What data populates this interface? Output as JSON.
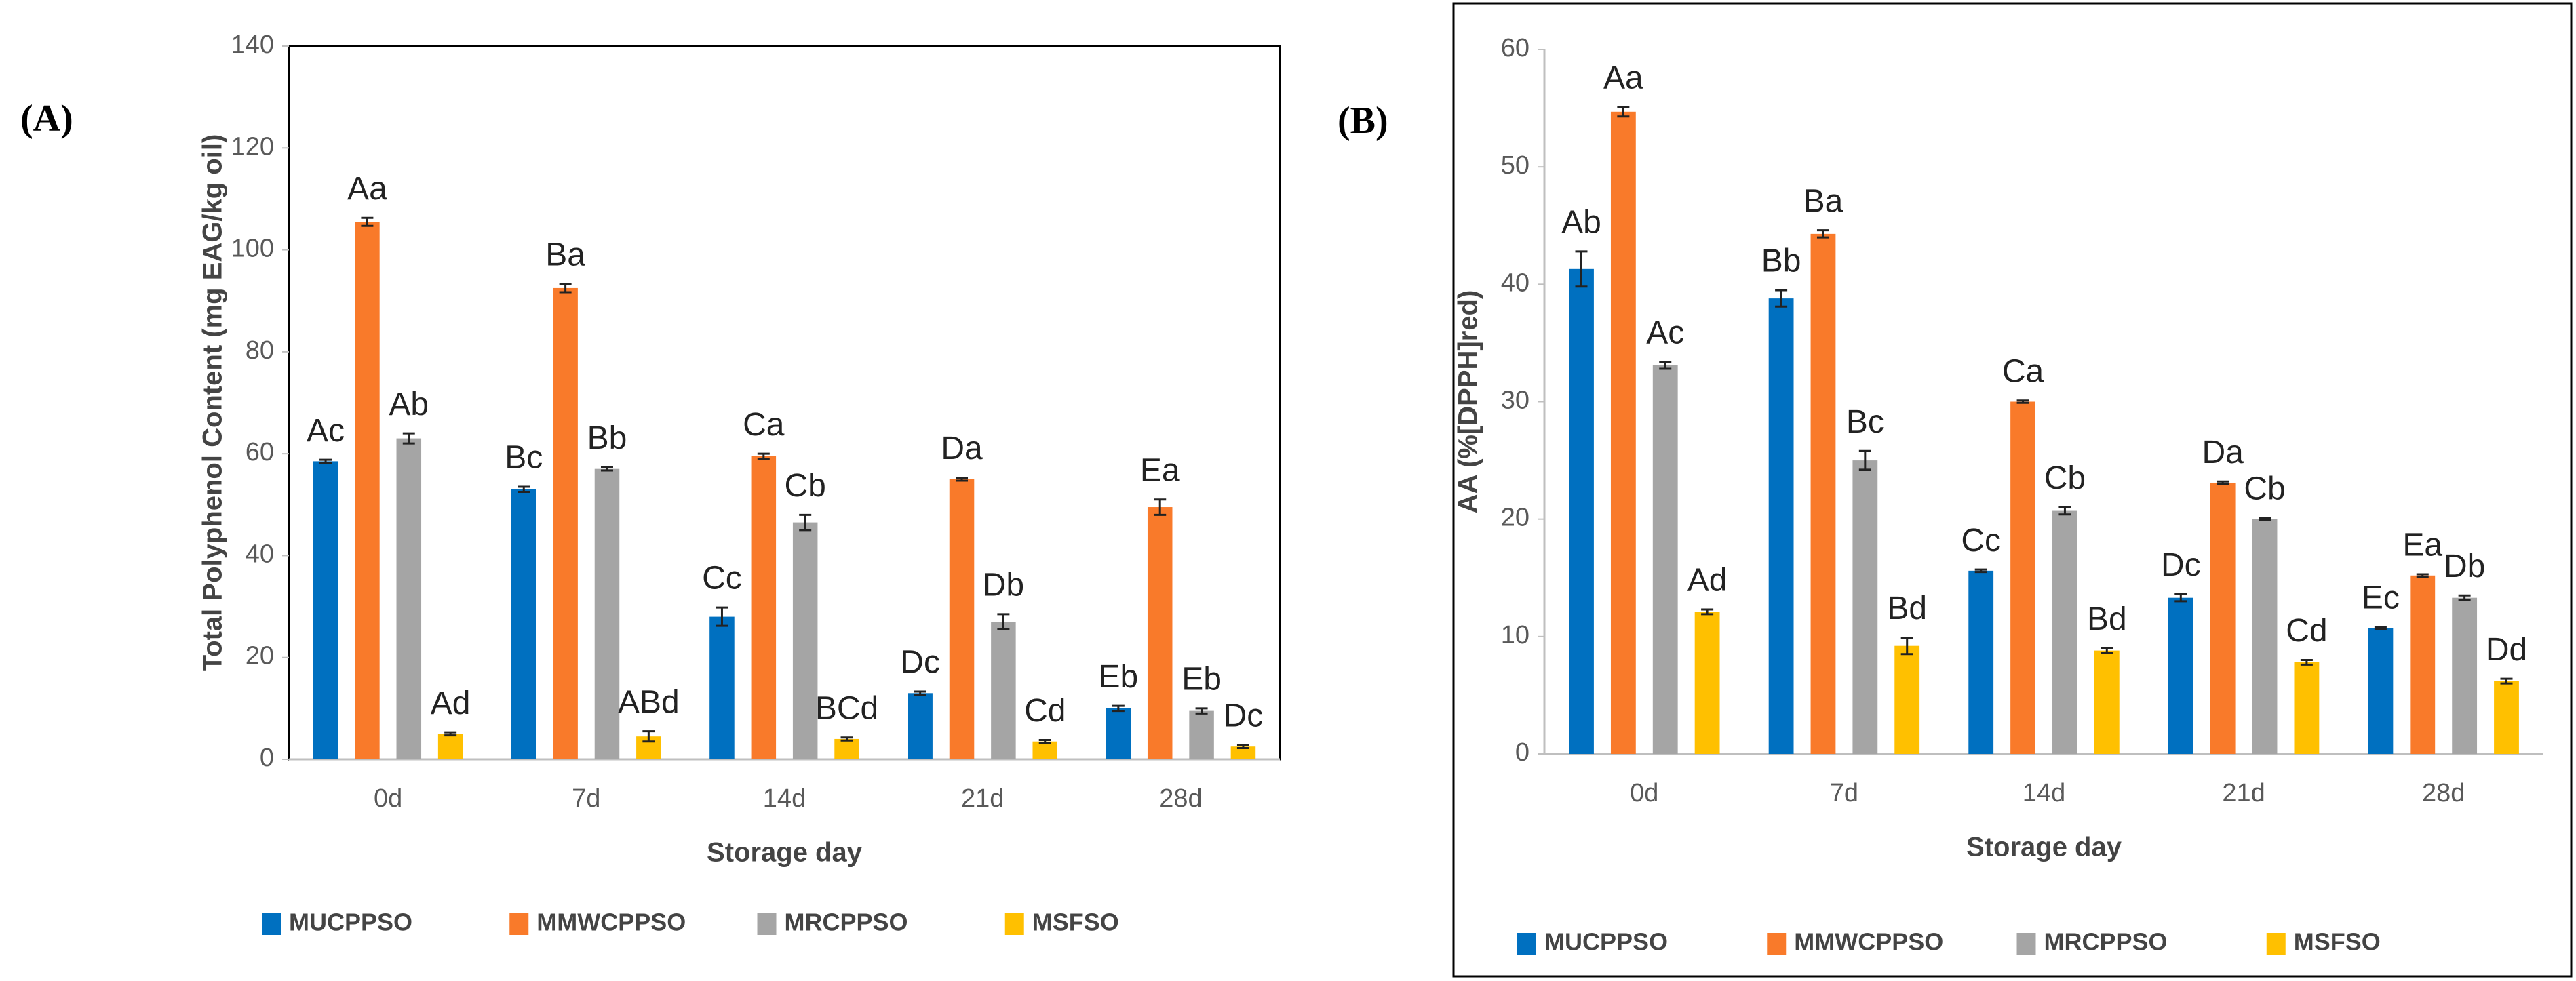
{
  "chart_data": [
    {
      "type": "bar",
      "panel": "(A)",
      "xlabel": "Storage day",
      "ylabel": "Total Polyphenol Content (mg EAG/kg oil)",
      "categories": [
        "0d",
        "7d",
        "14d",
        "21d",
        "28d"
      ],
      "ylim": [
        0,
        140
      ],
      "yticks": [
        0,
        20,
        40,
        60,
        80,
        100,
        120,
        140
      ],
      "grid": false,
      "series": [
        {
          "name": "MUCPPSO",
          "color": "#0070c0",
          "values": [
            58.5,
            53,
            28,
            13,
            10
          ],
          "errors": [
            0.3,
            0.5,
            1.8,
            0.3,
            0.5
          ],
          "letters": [
            "Ac",
            "Bc",
            "Cc",
            "Dc",
            "Eb"
          ]
        },
        {
          "name": "MMWCPPSO",
          "color": "#f97a2a",
          "values": [
            105.5,
            92.5,
            59.5,
            55,
            49.5
          ],
          "errors": [
            0.8,
            0.8,
            0.5,
            0.3,
            1.5
          ],
          "letters": [
            "Aa",
            "Ba",
            "Ca",
            "Da",
            "Ea"
          ]
        },
        {
          "name": "MRCPPSO",
          "color": "#a5a5a5",
          "values": [
            63,
            57,
            46.5,
            27,
            9.5
          ],
          "errors": [
            1,
            0.3,
            1.5,
            1.5,
            0.5
          ],
          "letters": [
            "Ab",
            "Bb",
            "Cb",
            "Db",
            "Eb"
          ]
        },
        {
          "name": "MSFSO",
          "color": "#ffc000",
          "values": [
            5,
            4.5,
            4,
            3.5,
            2.5
          ],
          "errors": [
            0.3,
            1,
            0.3,
            0.3,
            0.3
          ],
          "letters": [
            "Ad",
            "ABd",
            "BCd",
            "Cd",
            "Dc"
          ]
        }
      ]
    },
    {
      "type": "bar",
      "panel": "(B)",
      "xlabel": "Storage day",
      "ylabel": "AA (%[DPPH]red)",
      "categories": [
        "0d",
        "7d",
        "14d",
        "21d",
        "28d"
      ],
      "ylim": [
        0,
        60
      ],
      "yticks": [
        0,
        10,
        20,
        30,
        40,
        50,
        60
      ],
      "grid": false,
      "series": [
        {
          "name": "MUCPPSO",
          "color": "#0070c0",
          "values": [
            41.3,
            38.8,
            15.6,
            13.3,
            10.7
          ],
          "errors": [
            1.5,
            0.7,
            0.1,
            0.3,
            0.1
          ],
          "letters": [
            "Ab",
            "Bb",
            "Cc",
            "Dc",
            "Ec"
          ]
        },
        {
          "name": "MMWCPPSO",
          "color": "#f97a2a",
          "values": [
            54.7,
            44.3,
            30,
            23.1,
            15.2
          ],
          "errors": [
            0.4,
            0.3,
            0.1,
            0.1,
            0.1
          ],
          "letters": [
            "Aa",
            "Ba",
            "Ca",
            "Da",
            "Ea"
          ]
        },
        {
          "name": "MRCPPSO",
          "color": "#a5a5a5",
          "values": [
            33.1,
            25,
            20.7,
            20,
            13.3
          ],
          "errors": [
            0.3,
            0.8,
            0.3,
            0.1,
            0.2
          ],
          "letters": [
            "Ac",
            "Bc",
            "Cb",
            "Cb",
            "Db"
          ]
        },
        {
          "name": "MSFSO",
          "color": "#ffc000",
          "values": [
            12.1,
            9.2,
            8.8,
            7.8,
            6.2
          ],
          "errors": [
            0.2,
            0.7,
            0.2,
            0.2,
            0.2
          ],
          "letters": [
            "Ad",
            "Bd",
            "Bd",
            "Cd",
            "Dd"
          ]
        }
      ]
    }
  ]
}
